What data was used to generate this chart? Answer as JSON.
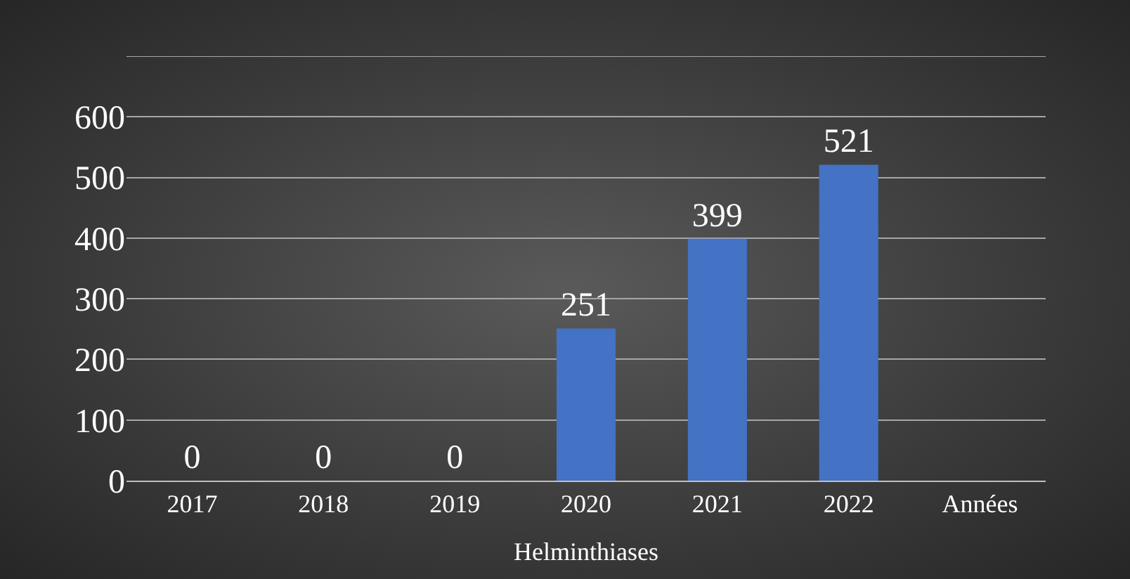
{
  "chart_data": {
    "type": "bar",
    "xlabel": "Helminthiases",
    "categories": [
      "2017",
      "2018",
      "2019",
      "2020",
      "2021",
      "2022",
      "Années"
    ],
    "values": [
      0,
      0,
      0,
      251,
      399,
      521,
      null
    ],
    "color": "#4472c4",
    "ylim": [
      0,
      700
    ],
    "yticks": [
      0,
      100,
      200,
      300,
      400,
      500,
      600,
      {
        "value": 700,
        "label": null
      }
    ],
    "grid": "y",
    "data_labels": true
  }
}
